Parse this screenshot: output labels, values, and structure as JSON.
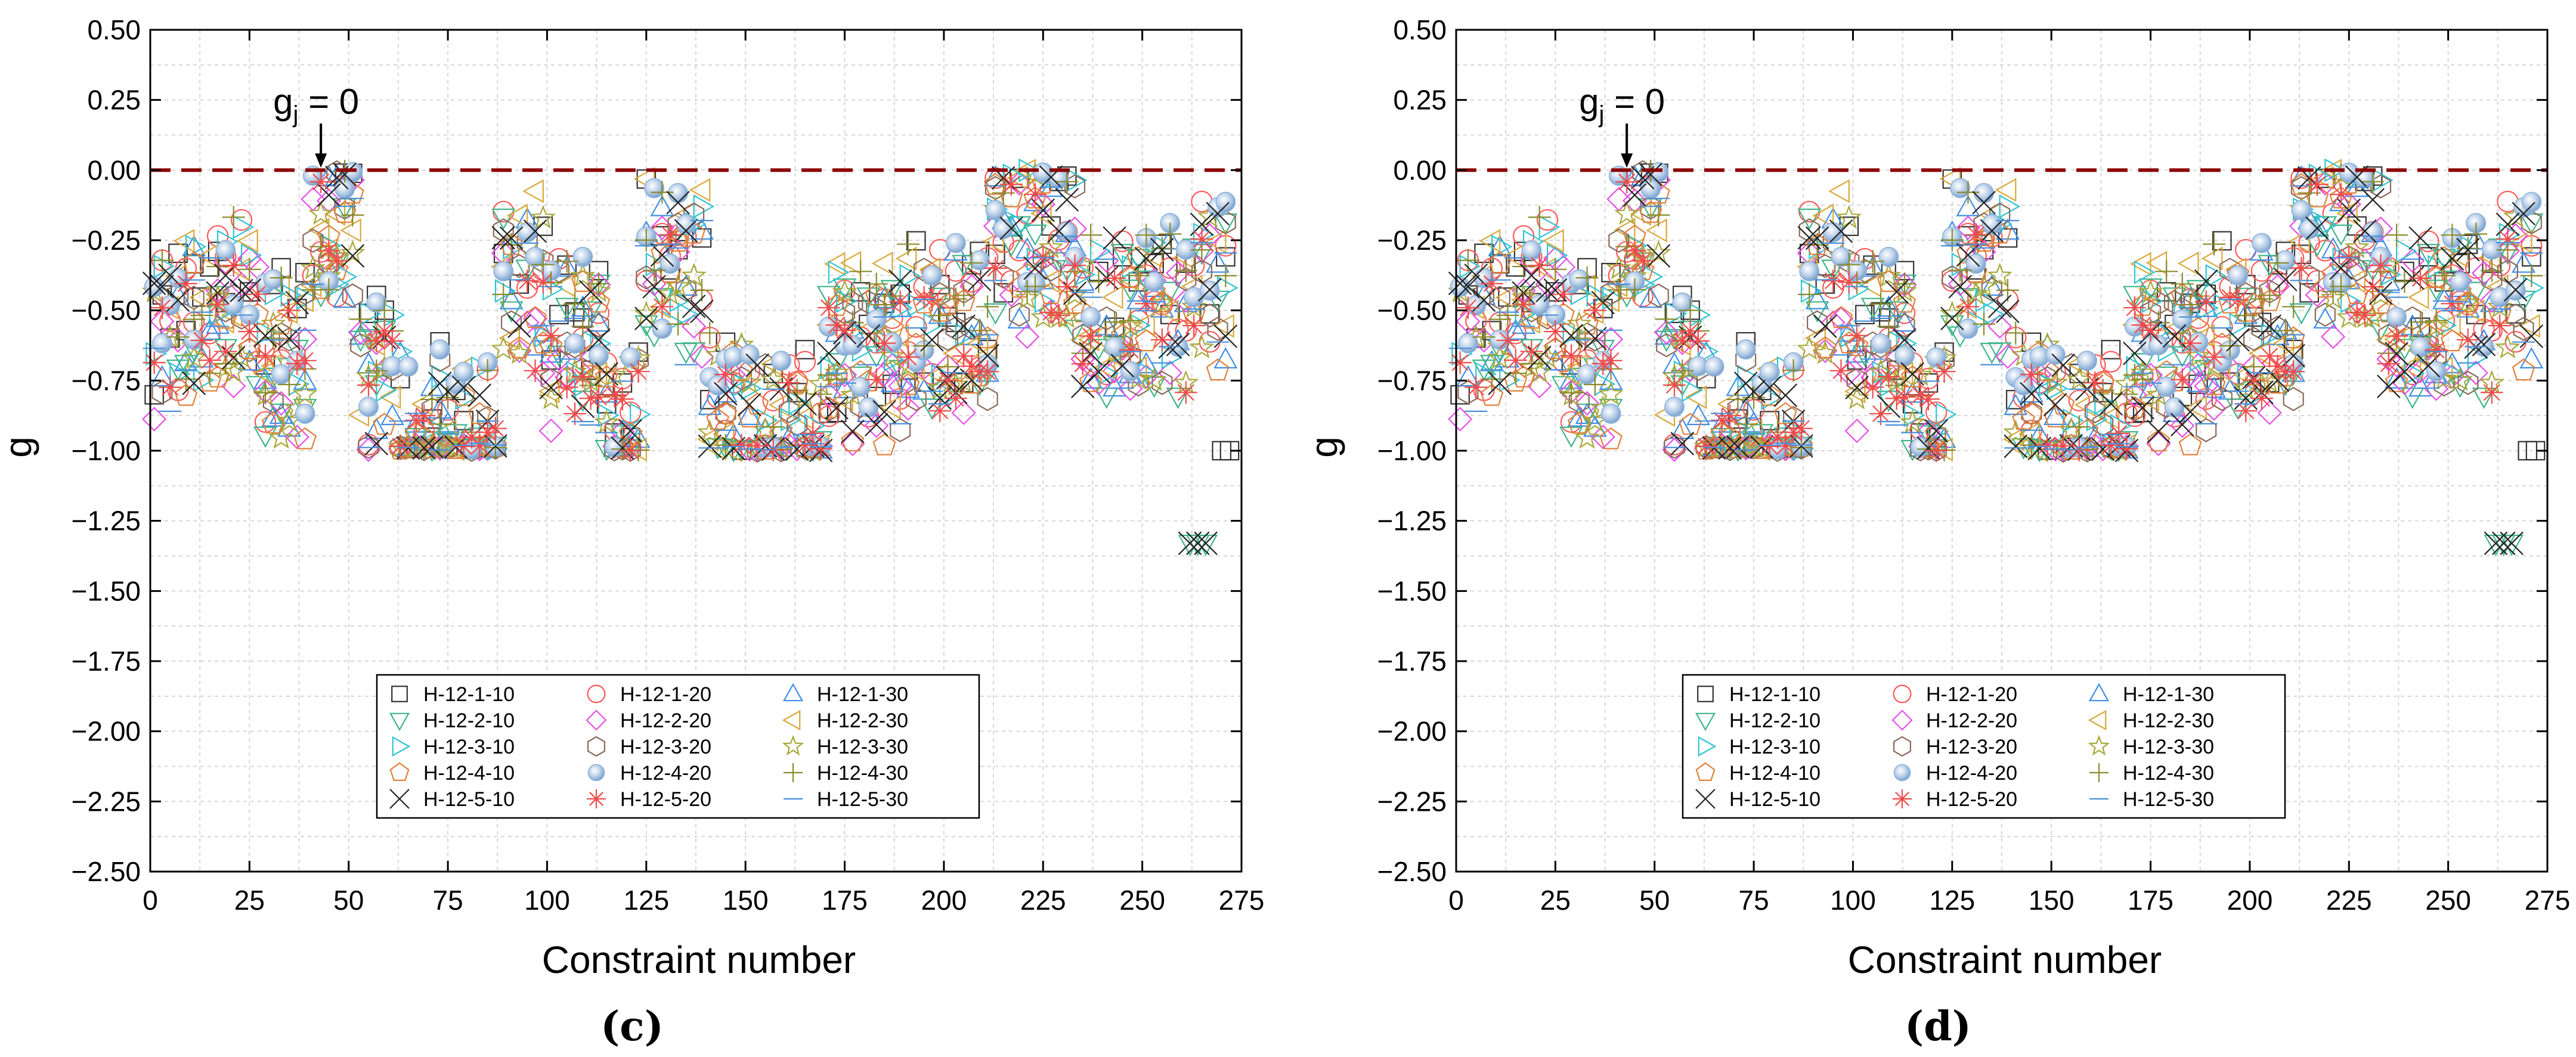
{
  "figure": {
    "panels": [
      "(c)",
      "(d)"
    ]
  },
  "chart_data": [
    {
      "type": "scatter",
      "panel_label": "(c)",
      "xlabel": "Constraint number",
      "ylabel": "g",
      "xlim": [
        0,
        275
      ],
      "ylim": [
        -2.5,
        0.5
      ],
      "xticks": [
        "0",
        "25",
        "50",
        "75",
        "100",
        "125",
        "150",
        "175",
        "200",
        "225",
        "250",
        "275"
      ],
      "yticks": [
        "0.50",
        "0.25",
        "0.00",
        "−0.25",
        "−0.50",
        "−0.75",
        "−1.00",
        "−1.25",
        "−1.50",
        "−1.75",
        "−2.00",
        "−2.25",
        "−2.50"
      ],
      "grid": true,
      "reference_line": {
        "y": 0,
        "style": "dashed",
        "color": "#8b0000"
      },
      "annotation": {
        "text_main": "g",
        "text_sub": "j",
        "text_rest": " = 0",
        "x": 43,
        "y": 0
      },
      "legend_position": "bottom-center",
      "series_count": 15
    },
    {
      "type": "scatter",
      "panel_label": "(d)",
      "xlabel": "Constraint number",
      "ylabel": "g",
      "xlim": [
        0,
        275
      ],
      "ylim": [
        -2.5,
        0.5
      ],
      "xticks": [
        "0",
        "25",
        "50",
        "75",
        "100",
        "125",
        "150",
        "175",
        "200",
        "225",
        "250",
        "275"
      ],
      "yticks": [
        "0.50",
        "0.25",
        "0.00",
        "−0.25",
        "−0.50",
        "−0.75",
        "−1.00",
        "−1.25",
        "−1.50",
        "−1.75",
        "−2.00",
        "−2.25",
        "−2.50"
      ],
      "grid": true,
      "reference_line": {
        "y": 0,
        "style": "dashed",
        "color": "#8b0000"
      },
      "annotation": {
        "text_main": "g",
        "text_sub": "j",
        "text_rest": " = 0",
        "x": 43,
        "y": 0
      },
      "legend_position": "bottom-center",
      "series_count": 15
    }
  ],
  "legend": [
    {
      "name": "H-12-1-10",
      "marker": "square",
      "color": "#333333"
    },
    {
      "name": "H-12-1-20",
      "marker": "circle",
      "color": "#ff5a5a"
    },
    {
      "name": "H-12-1-30",
      "marker": "triangle-up",
      "color": "#3f8ee6"
    },
    {
      "name": "H-12-2-10",
      "marker": "triangle-down",
      "color": "#3fb58a"
    },
    {
      "name": "H-12-2-20",
      "marker": "diamond",
      "color": "#e64fe6"
    },
    {
      "name": "H-12-2-30",
      "marker": "triangle-left",
      "color": "#d9a83a"
    },
    {
      "name": "H-12-3-10",
      "marker": "triangle-right",
      "color": "#31c4d4"
    },
    {
      "name": "H-12-3-20",
      "marker": "hexagon",
      "color": "#8a6a5a"
    },
    {
      "name": "H-12-3-30",
      "marker": "star",
      "color": "#a8a83a"
    },
    {
      "name": "H-12-4-10",
      "marker": "pentagon",
      "color": "#e0803a"
    },
    {
      "name": "H-12-4-20",
      "marker": "sphere",
      "color": "#8fb4dc"
    },
    {
      "name": "H-12-4-30",
      "marker": "plus",
      "color": "#8a8a2a"
    },
    {
      "name": "H-12-5-10",
      "marker": "cross",
      "color": "#222222"
    },
    {
      "name": "H-12-5-20",
      "marker": "asterisk",
      "color": "#f04a4a"
    },
    {
      "name": "H-12-5-30",
      "marker": "dash",
      "color": "#4a90d9"
    }
  ]
}
